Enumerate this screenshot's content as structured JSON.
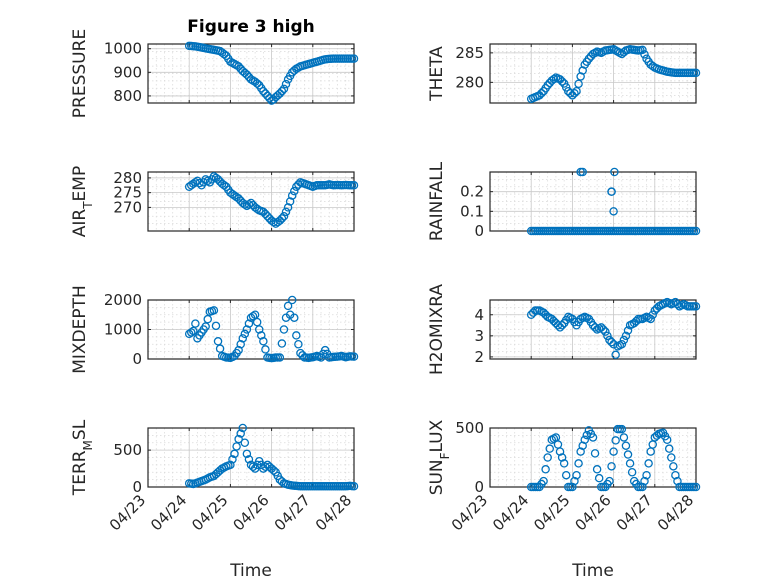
{
  "figure": {
    "title": "Figure 3 high"
  },
  "colors": {
    "series": "#0072BD",
    "axes": "#262626",
    "grid": "#c8c8c8"
  },
  "x_ticks": [
    "04/23",
    "04/24",
    "04/25",
    "04/26",
    "04/27",
    "04/28"
  ],
  "chart_data": [
    {
      "id": "pressure",
      "type": "scatter",
      "title": "Figure 3 high",
      "ylabel": "PRESSURE",
      "xlabel": "",
      "x_range": [
        "04/23",
        "04/28"
      ],
      "ylim": [
        770,
        1020
      ],
      "yticks": [
        800,
        900,
        1000
      ],
      "show_xticklabels": false,
      "grid": true,
      "marker": "circle-open",
      "series": [
        {
          "x": [
            1.0,
            1.15,
            1.3,
            1.45,
            1.6,
            1.75,
            1.9,
            2.0,
            2.1,
            2.2,
            2.3,
            2.4,
            2.5,
            2.6,
            2.7,
            2.8,
            2.9,
            3.0,
            3.05,
            3.1,
            3.2,
            3.3,
            3.4,
            3.5,
            3.6,
            3.7,
            3.8,
            3.9,
            4.0,
            4.1,
            4.2,
            4.3,
            4.4,
            4.5,
            4.6,
            4.7,
            4.8,
            4.9,
            5.0
          ],
          "y": [
            1012,
            1010,
            1005,
            1000,
            995,
            990,
            970,
            945,
            935,
            925,
            905,
            890,
            870,
            860,
            845,
            820,
            800,
            780,
            785,
            795,
            810,
            830,
            870,
            900,
            915,
            925,
            930,
            935,
            940,
            945,
            950,
            955,
            957,
            958,
            958,
            958,
            958,
            958,
            958
          ]
        }
      ]
    },
    {
      "id": "theta",
      "type": "scatter",
      "ylabel": "THETA",
      "xlabel": "",
      "x_range": [
        "04/23",
        "04/28"
      ],
      "ylim": [
        276.5,
        286.5
      ],
      "yticks": [
        280,
        285
      ],
      "show_xticklabels": false,
      "grid": true,
      "marker": "circle-open",
      "series": [
        {
          "x": [
            1.0,
            1.1,
            1.2,
            1.3,
            1.4,
            1.5,
            1.6,
            1.7,
            1.8,
            1.9,
            2.0,
            2.1,
            2.2,
            2.3,
            2.4,
            2.5,
            2.6,
            2.7,
            2.8,
            2.9,
            3.0,
            3.1,
            3.2,
            3.3,
            3.4,
            3.5,
            3.6,
            3.7,
            3.8,
            3.9,
            4.0,
            4.1,
            4.2,
            4.3,
            4.4,
            4.5,
            4.6,
            4.7,
            4.8,
            4.9,
            5.0
          ],
          "y": [
            277.2,
            277.5,
            277.8,
            278.5,
            279.5,
            280.3,
            280.8,
            280.5,
            279.8,
            278.5,
            277.8,
            278.5,
            281.0,
            283.0,
            284.0,
            284.8,
            285.2,
            285.0,
            285.4,
            285.5,
            285.6,
            285.2,
            284.8,
            285.4,
            285.6,
            285.5,
            285.4,
            285.5,
            284.0,
            283.0,
            282.5,
            282.2,
            282.0,
            281.8,
            281.7,
            281.6,
            281.6,
            281.6,
            281.6,
            281.6,
            281.6
          ]
        }
      ]
    },
    {
      "id": "air_temp",
      "type": "scatter",
      "ylabel": "AIR_TEMP",
      "xlabel": "",
      "x_range": [
        "04/23",
        "04/28"
      ],
      "ylim": [
        262,
        282
      ],
      "yticks": [
        270,
        275,
        280
      ],
      "show_xticklabels": false,
      "grid": true,
      "marker": "circle-open",
      "series": [
        {
          "x": [
            1.0,
            1.1,
            1.2,
            1.3,
            1.4,
            1.5,
            1.6,
            1.7,
            1.8,
            1.9,
            2.0,
            2.1,
            2.2,
            2.3,
            2.4,
            2.5,
            2.6,
            2.7,
            2.8,
            2.9,
            3.0,
            3.1,
            3.2,
            3.3,
            3.4,
            3.5,
            3.6,
            3.7,
            3.8,
            3.9,
            4.0,
            4.1,
            4.2,
            4.3,
            4.4,
            4.5,
            4.6,
            4.7,
            4.8,
            4.9,
            5.0
          ],
          "y": [
            277.0,
            278.0,
            279.0,
            277.5,
            279.5,
            278.5,
            280.5,
            279.5,
            278.0,
            277.0,
            275.0,
            274.0,
            273.0,
            271.5,
            270.5,
            271.5,
            270.0,
            269.0,
            268.5,
            267.0,
            265.5,
            264.5,
            265.5,
            267.0,
            270.0,
            274.0,
            277.0,
            278.5,
            278.0,
            277.5,
            277.0,
            277.5,
            277.5,
            277.5,
            277.8,
            277.5,
            277.6,
            277.5,
            277.6,
            277.5,
            277.5
          ]
        }
      ]
    },
    {
      "id": "rainfall",
      "type": "scatter",
      "ylabel": "RAINFALL",
      "xlabel": "",
      "x_range": [
        "04/23",
        "04/28"
      ],
      "ylim": [
        0,
        0.3
      ],
      "yticks": [
        0,
        0.1,
        0.2
      ],
      "show_xticklabels": false,
      "grid": true,
      "marker": "circle-open",
      "series": [
        {
          "x": [
            1.0,
            1.2,
            1.4,
            1.6,
            1.8,
            2.0,
            2.2,
            2.4,
            2.6,
            2.8,
            3.0,
            3.2,
            3.4,
            3.6,
            3.8,
            4.0,
            4.2,
            4.4,
            4.6,
            4.8,
            5.0,
            2.2,
            2.25,
            2.95,
            2.95,
            3.0,
            3.02
          ],
          "y": [
            0,
            0,
            0,
            0,
            0,
            0,
            0,
            0,
            0,
            0,
            0,
            0,
            0,
            0,
            0,
            0,
            0,
            0,
            0,
            0,
            0,
            0.3,
            0.3,
            0.2,
            0.2,
            0.1,
            0.3
          ]
        }
      ]
    },
    {
      "id": "mixdepth",
      "type": "scatter",
      "ylabel": "MIXDEPTH",
      "xlabel": "",
      "x_range": [
        "04/23",
        "04/28"
      ],
      "ylim": [
        0,
        2000
      ],
      "yticks": [
        0,
        1000,
        2000
      ],
      "show_xticklabels": false,
      "grid": true,
      "marker": "circle-open",
      "series": [
        {
          "x": [
            1.0,
            1.1,
            1.15,
            1.2,
            1.3,
            1.4,
            1.5,
            1.6,
            1.7,
            1.8,
            1.9,
            2.0,
            2.1,
            2.2,
            2.3,
            2.4,
            2.5,
            2.6,
            2.7,
            2.8,
            2.9,
            3.0,
            3.1,
            3.2,
            3.3,
            3.4,
            3.45,
            3.5,
            3.6,
            3.7,
            3.8,
            3.9,
            4.0,
            4.1,
            4.2,
            4.3,
            4.4,
            4.5,
            4.6,
            4.7,
            4.8,
            4.9,
            5.0
          ],
          "y": [
            850,
            950,
            1200,
            700,
            900,
            1100,
            1600,
            1650,
            600,
            100,
            50,
            40,
            100,
            300,
            700,
            1000,
            1400,
            1500,
            1000,
            600,
            50,
            30,
            50,
            50,
            1000,
            1800,
            1500,
            2000,
            800,
            200,
            50,
            40,
            60,
            100,
            50,
            300,
            50,
            70,
            80,
            100,
            60,
            90,
            80
          ]
        }
      ]
    },
    {
      "id": "h2omixra",
      "type": "scatter",
      "ylabel": "H2OMIXRA",
      "xlabel": "",
      "x_range": [
        "04/23",
        "04/28"
      ],
      "ylim": [
        1.9,
        4.7
      ],
      "yticks": [
        2,
        3,
        4
      ],
      "show_xticklabels": false,
      "grid": true,
      "marker": "circle-open",
      "series": [
        {
          "x": [
            1.0,
            1.1,
            1.2,
            1.3,
            1.4,
            1.5,
            1.6,
            1.7,
            1.8,
            1.9,
            2.0,
            2.1,
            2.2,
            2.3,
            2.4,
            2.5,
            2.6,
            2.7,
            2.8,
            2.9,
            3.0,
            3.05,
            3.1,
            3.2,
            3.3,
            3.4,
            3.5,
            3.6,
            3.7,
            3.8,
            3.9,
            4.0,
            4.1,
            4.2,
            4.3,
            4.4,
            4.5,
            4.6,
            4.7,
            4.8,
            4.9,
            5.0
          ],
          "y": [
            4.0,
            4.2,
            4.2,
            4.1,
            3.9,
            3.8,
            3.6,
            3.4,
            3.6,
            3.9,
            3.8,
            3.5,
            3.8,
            3.9,
            3.8,
            3.5,
            3.3,
            3.4,
            3.2,
            2.8,
            2.6,
            2.1,
            2.5,
            2.6,
            3.0,
            3.5,
            3.6,
            3.8,
            3.8,
            3.9,
            3.8,
            4.2,
            4.4,
            4.5,
            4.6,
            4.5,
            4.6,
            4.4,
            4.5,
            4.4,
            4.4,
            4.4
          ]
        }
      ]
    },
    {
      "id": "terr_msl",
      "type": "scatter",
      "ylabel": "TERR_MSL",
      "xlabel": "Time",
      "x_range": [
        "04/23",
        "04/28"
      ],
      "ylim": [
        0,
        800
      ],
      "yticks": [
        0,
        500
      ],
      "show_xticklabels": true,
      "grid": true,
      "marker": "circle-open",
      "series": [
        {
          "x": [
            1.0,
            1.1,
            1.2,
            1.3,
            1.4,
            1.5,
            1.6,
            1.7,
            1.8,
            1.9,
            2.0,
            2.1,
            2.2,
            2.3,
            2.35,
            2.4,
            2.5,
            2.6,
            2.7,
            2.8,
            2.9,
            3.0,
            3.1,
            3.2,
            3.3,
            3.4,
            3.5,
            3.6,
            3.7,
            3.8,
            3.9,
            4.0,
            4.1,
            4.2,
            4.3,
            4.4,
            4.5,
            4.6,
            4.7,
            4.8,
            4.9,
            5.0
          ],
          "y": [
            50,
            40,
            60,
            80,
            100,
            130,
            150,
            200,
            250,
            280,
            300,
            450,
            650,
            800,
            600,
            450,
            300,
            250,
            350,
            250,
            300,
            250,
            200,
            100,
            50,
            30,
            20,
            15,
            10,
            10,
            10,
            10,
            10,
            10,
            10,
            10,
            10,
            10,
            10,
            10,
            15,
            10
          ]
        }
      ]
    },
    {
      "id": "sun_flux",
      "type": "scatter",
      "ylabel": "SUN_FLUX",
      "xlabel": "Time",
      "x_range": [
        "04/23",
        "04/28"
      ],
      "ylim": [
        0,
        500
      ],
      "yticks": [
        0,
        500
      ],
      "show_xticklabels": true,
      "grid": true,
      "marker": "circle-open",
      "series": [
        {
          "x": [
            1.0,
            1.1,
            1.2,
            1.3,
            1.4,
            1.5,
            1.6,
            1.7,
            1.8,
            1.9,
            2.0,
            2.1,
            2.2,
            2.3,
            2.4,
            2.5,
            2.6,
            2.7,
            2.8,
            2.9,
            3.0,
            3.1,
            3.2,
            3.3,
            3.4,
            3.5,
            3.6,
            3.7,
            3.8,
            3.9,
            4.0,
            4.1,
            4.2,
            4.3,
            4.4,
            4.5,
            4.6,
            4.7,
            4.8,
            4.9,
            5.0
          ],
          "y": [
            0,
            0,
            0,
            50,
            250,
            400,
            420,
            300,
            200,
            0,
            0,
            100,
            300,
            400,
            480,
            420,
            150,
            0,
            0,
            50,
            300,
            490,
            490,
            350,
            200,
            50,
            0,
            0,
            100,
            300,
            420,
            450,
            460,
            400,
            250,
            100,
            0,
            0,
            0,
            0,
            0
          ]
        }
      ]
    }
  ]
}
